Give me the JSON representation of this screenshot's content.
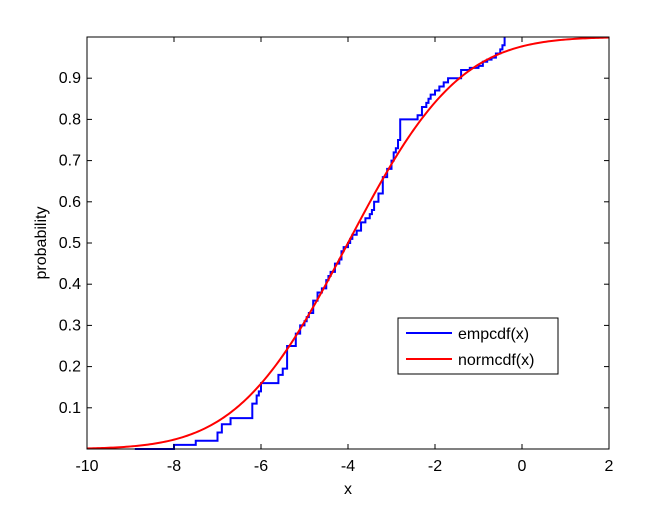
{
  "chart_data": {
    "type": "line",
    "title": "",
    "xlabel": "x",
    "ylabel": "probability",
    "xlim": [
      -10,
      2
    ],
    "ylim": [
      0,
      1
    ],
    "xticks": [
      -10,
      -8,
      -6,
      -4,
      -2,
      0,
      2
    ],
    "yticks": [
      0.1,
      0.2,
      0.3,
      0.4,
      0.5,
      0.6,
      0.7,
      0.8,
      0.9
    ],
    "grid": false,
    "legend_position": "lower-right",
    "series": [
      {
        "name": "empcdf(x)",
        "color": "#0000ff",
        "step": true,
        "x": [
          -8.9,
          -8.0,
          -7.5,
          -7.0,
          -6.9,
          -6.7,
          -6.2,
          -6.1,
          -6.05,
          -6.0,
          -5.6,
          -5.5,
          -5.4,
          -5.2,
          -5.1,
          -5.0,
          -4.95,
          -4.9,
          -4.8,
          -4.7,
          -4.6,
          -4.5,
          -4.45,
          -4.4,
          -4.3,
          -4.2,
          -4.15,
          -4.1,
          -4.0,
          -3.95,
          -3.9,
          -3.8,
          -3.7,
          -3.6,
          -3.5,
          -3.45,
          -3.4,
          -3.3,
          -3.2,
          -3.1,
          -3.0,
          -2.95,
          -2.9,
          -2.85,
          -2.8,
          -2.4,
          -2.3,
          -2.2,
          -2.15,
          -2.1,
          -2.0,
          -1.9,
          -1.8,
          -1.7,
          -1.4,
          -1.2,
          -1.0,
          -0.9,
          -0.8,
          -0.7,
          -0.6,
          -0.5,
          -0.45,
          -0.4
        ],
        "y": [
          0.0,
          0.01,
          0.02,
          0.04,
          0.06,
          0.075,
          0.11,
          0.13,
          0.14,
          0.16,
          0.18,
          0.195,
          0.25,
          0.28,
          0.3,
          0.31,
          0.32,
          0.33,
          0.36,
          0.38,
          0.39,
          0.41,
          0.42,
          0.43,
          0.45,
          0.46,
          0.48,
          0.49,
          0.5,
          0.51,
          0.52,
          0.53,
          0.55,
          0.56,
          0.57,
          0.58,
          0.6,
          0.62,
          0.66,
          0.68,
          0.7,
          0.72,
          0.73,
          0.75,
          0.8,
          0.81,
          0.83,
          0.84,
          0.85,
          0.86,
          0.87,
          0.88,
          0.89,
          0.9,
          0.92,
          0.925,
          0.93,
          0.94,
          0.945,
          0.95,
          0.96,
          0.97,
          0.98,
          1.0
        ]
      },
      {
        "name": "normcdf(x)",
        "color": "#ff0000",
        "mean": -4.0,
        "sd": 2.0,
        "x_range": [
          -10,
          2
        ]
      }
    ]
  }
}
